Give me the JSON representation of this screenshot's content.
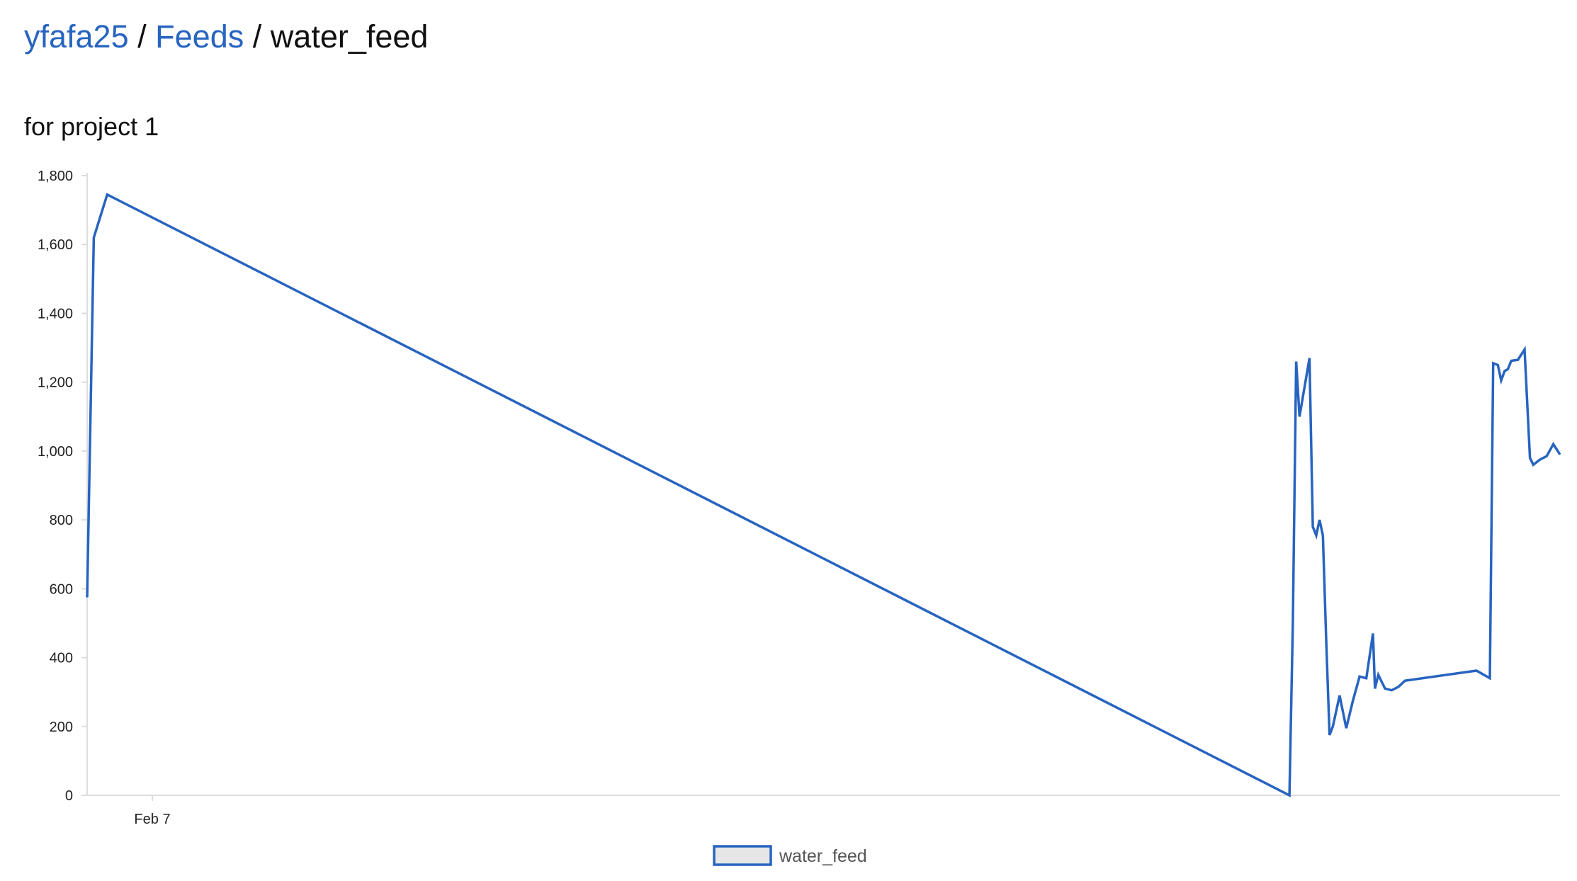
{
  "breadcrumb": {
    "user": "yfafa25",
    "separator": "/",
    "feeds": "Feeds",
    "feed_name": "water_feed"
  },
  "description": "for project 1",
  "colors": {
    "link": "#2764c0",
    "series": "#2764c0",
    "legend_fill": "#e6e6e6",
    "axis": "#dddddd"
  },
  "chart_data": {
    "type": "line",
    "title": "",
    "xlabel": "",
    "ylabel": "",
    "ylim": [
      0,
      1800
    ],
    "y_ticks": [
      "0",
      "200",
      "400",
      "600",
      "800",
      "1,000",
      "1,200",
      "1,400",
      "1,600",
      "1,800"
    ],
    "x_ticks": [
      "Feb 7"
    ],
    "legend": "bottom-center",
    "grid": false,
    "series": [
      {
        "name": "water_feed",
        "points": [
          [
            0,
            575
          ],
          [
            0.1,
            1620
          ],
          [
            0.3,
            1745
          ],
          [
            18,
            0
          ],
          [
            18.05,
            500
          ],
          [
            18.1,
            1260
          ],
          [
            18.15,
            1100
          ],
          [
            18.3,
            1270
          ],
          [
            18.35,
            780
          ],
          [
            18.4,
            755
          ],
          [
            18.45,
            800
          ],
          [
            18.5,
            755
          ],
          [
            18.55,
            450
          ],
          [
            18.6,
            175
          ],
          [
            18.65,
            200
          ],
          [
            18.75,
            290
          ],
          [
            18.85,
            195
          ],
          [
            18.95,
            275
          ],
          [
            19.05,
            345
          ],
          [
            19.15,
            340
          ],
          [
            19.25,
            470
          ],
          [
            19.28,
            310
          ],
          [
            19.33,
            350
          ],
          [
            19.43,
            310
          ],
          [
            19.53,
            305
          ],
          [
            19.63,
            315
          ],
          [
            19.73,
            333
          ],
          [
            20.8,
            362
          ],
          [
            21.0,
            340
          ],
          [
            21.05,
            1255
          ],
          [
            21.12,
            1250
          ],
          [
            21.17,
            1205
          ],
          [
            21.22,
            1232
          ],
          [
            21.27,
            1238
          ],
          [
            21.32,
            1262
          ],
          [
            21.42,
            1265
          ],
          [
            21.52,
            1295
          ],
          [
            21.6,
            980
          ],
          [
            21.65,
            960
          ],
          [
            21.75,
            975
          ],
          [
            21.85,
            985
          ],
          [
            21.95,
            1020
          ],
          [
            22.05,
            990
          ]
        ]
      }
    ]
  }
}
